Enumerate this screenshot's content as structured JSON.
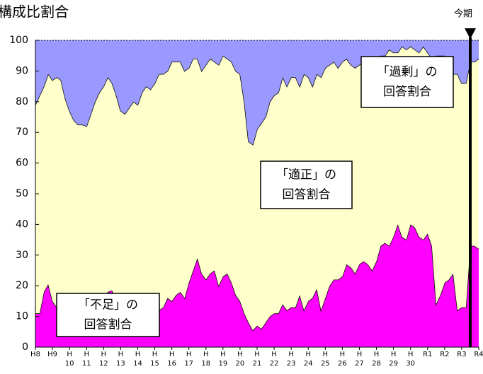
{
  "chart_data": {
    "type": "stacked-area",
    "title": "構成比割合",
    "categories": [
      "H8",
      null,
      null,
      null,
      "H9",
      null,
      null,
      null,
      "H10",
      null,
      null,
      null,
      "H11",
      null,
      null,
      null,
      "H12",
      null,
      null,
      null,
      "H13",
      null,
      null,
      null,
      "H14",
      null,
      null,
      null,
      "H15",
      null,
      null,
      null,
      "H16",
      null,
      null,
      null,
      "H17",
      null,
      null,
      null,
      "H18",
      null,
      null,
      null,
      "H19",
      null,
      null,
      null,
      "H20",
      null,
      null,
      null,
      "H21",
      null,
      null,
      null,
      "H22",
      null,
      null,
      null,
      "H23",
      null,
      null,
      null,
      "H24",
      null,
      null,
      null,
      "H25",
      null,
      null,
      null,
      "H26",
      null,
      null,
      null,
      "H27",
      null,
      null,
      null,
      "H28",
      null,
      null,
      null,
      "H29",
      null,
      null,
      null,
      "H30",
      null,
      null,
      null,
      "R1",
      null,
      null,
      null,
      "R2",
      null,
      null,
      null,
      "R3",
      null,
      null,
      null,
      "R4"
    ],
    "series": [
      {
        "name": "不足",
        "color": "#ff00ff",
        "values": [
          11,
          11,
          18,
          20.5,
          15,
          13,
          12,
          11,
          10,
          10,
          9,
          9,
          9,
          10,
          12,
          14,
          16,
          18,
          18.5,
          15,
          13,
          12,
          12,
          13,
          13,
          12,
          12,
          11,
          11,
          12,
          13,
          16,
          15,
          17,
          18,
          16,
          21,
          25,
          29,
          24,
          22,
          24,
          25,
          20,
          23,
          24,
          21,
          17,
          15,
          11,
          8,
          5.5,
          7,
          6,
          8,
          10,
          11,
          11,
          14,
          12,
          13,
          13,
          17,
          12,
          15,
          16,
          19,
          12,
          16,
          20,
          22,
          22,
          23,
          27,
          26,
          24,
          27,
          28,
          27,
          25,
          28,
          33,
          34,
          33,
          36,
          40,
          36,
          35,
          40,
          39,
          36,
          35,
          37,
          33,
          14,
          17,
          21,
          22,
          24,
          12,
          13,
          13,
          33,
          33,
          32
        ]
      },
      {
        "name": "適正",
        "color": "#ffffcc",
        "values": [
          68,
          71,
          67,
          68.5,
          72,
          75,
          75,
          70,
          67,
          64,
          63.5,
          63.5,
          63,
          66,
          68,
          69,
          69,
          70,
          67.5,
          67,
          64,
          64,
          66,
          67,
          66,
          71,
          73,
          73,
          75,
          77,
          76,
          74,
          78,
          76,
          75,
          74,
          70,
          69,
          65,
          66,
          70,
          70,
          68,
          72,
          72,
          70,
          72,
          73,
          74,
          69,
          59,
          60.5,
          64,
          67,
          67,
          70,
          71,
          72,
          74,
          73,
          75,
          75,
          68,
          77,
          73,
          69,
          70,
          76,
          75,
          72,
          71,
          69,
          70,
          67,
          66,
          67,
          65,
          65,
          67,
          69,
          66,
          62,
          61,
          64,
          60,
          56,
          62,
          62,
          58,
          58,
          60,
          63,
          59,
          61,
          81,
          78,
          74,
          64,
          65,
          77,
          73,
          73,
          60,
          60,
          62
        ]
      },
      {
        "name": "過剰",
        "color": "#9999ff",
        "values": [
          21,
          18,
          15,
          11,
          13,
          12,
          13,
          19,
          23,
          26,
          27.5,
          27.5,
          28,
          24,
          20,
          17,
          15,
          12,
          14,
          18,
          23,
          24,
          22,
          20,
          21,
          17,
          15,
          16,
          14,
          11,
          11,
          10,
          7,
          7,
          7,
          10,
          9,
          6,
          6,
          10,
          8,
          6,
          7,
          8,
          5,
          6,
          7,
          10,
          11,
          20,
          33,
          34,
          29,
          27,
          25,
          20,
          18,
          17,
          12,
          15,
          12,
          12,
          15,
          11,
          12,
          15,
          11,
          12,
          9,
          8,
          7,
          9,
          7,
          6,
          8,
          9,
          8,
          7,
          6,
          6,
          6,
          5,
          5,
          3,
          4,
          4,
          2,
          3,
          2,
          3,
          4,
          2,
          4,
          6,
          5,
          5,
          5,
          14,
          11,
          11,
          14,
          14,
          7,
          7,
          6
        ]
      }
    ],
    "ylim": [
      0,
      100
    ],
    "yticks": [
      0,
      10,
      20,
      30,
      40,
      50,
      60,
      70,
      80,
      90,
      100
    ],
    "annotations": [
      [
        "「過剰」の",
        "回答割合"
      ],
      [
        "「適正」の",
        "回答割合"
      ],
      [
        "「不足」の",
        "回答割合"
      ]
    ],
    "current_period": "今期"
  }
}
